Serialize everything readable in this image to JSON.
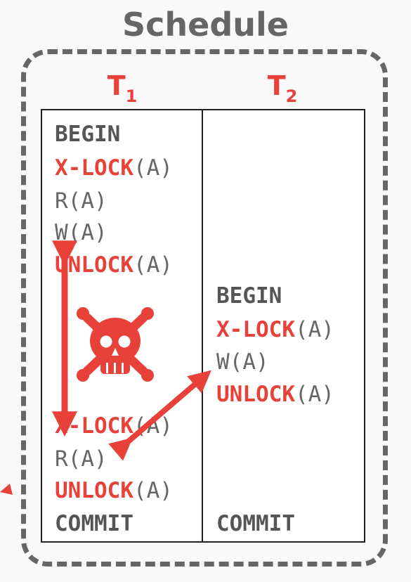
{
  "title": "Schedule",
  "transactions": [
    {
      "name": "T",
      "sub": "1"
    },
    {
      "name": "T",
      "sub": "2"
    }
  ],
  "t1_ops": {
    "begin": "BEGIN",
    "xlock1_kw": "X-LOCK",
    "xlock1_arg": "(A)",
    "read1": "R(A)",
    "write1": "W(A)",
    "unlock1_kw": "UNLOCK",
    "unlock1_arg": "(A)",
    "xlock2_kw": "X-LOCK",
    "xlock2_arg": "(A)",
    "read2": "R(A)",
    "unlock2_kw": "UNLOCK",
    "unlock2_arg": "(A)",
    "commit": "COMMIT"
  },
  "t2_ops": {
    "begin": "BEGIN",
    "xlock_kw": "X-LOCK",
    "xlock_arg": "(A)",
    "write": "W(A)",
    "unlock_kw": "UNLOCK",
    "unlock_arg": "(A)",
    "commit": "COMMIT"
  },
  "colors": {
    "accent": "#e8413a",
    "text": "#666666",
    "frame": "#666666"
  },
  "icons": [
    "skull-crossbones-icon",
    "double-arrow-vertical",
    "double-arrow-diagonal"
  ]
}
